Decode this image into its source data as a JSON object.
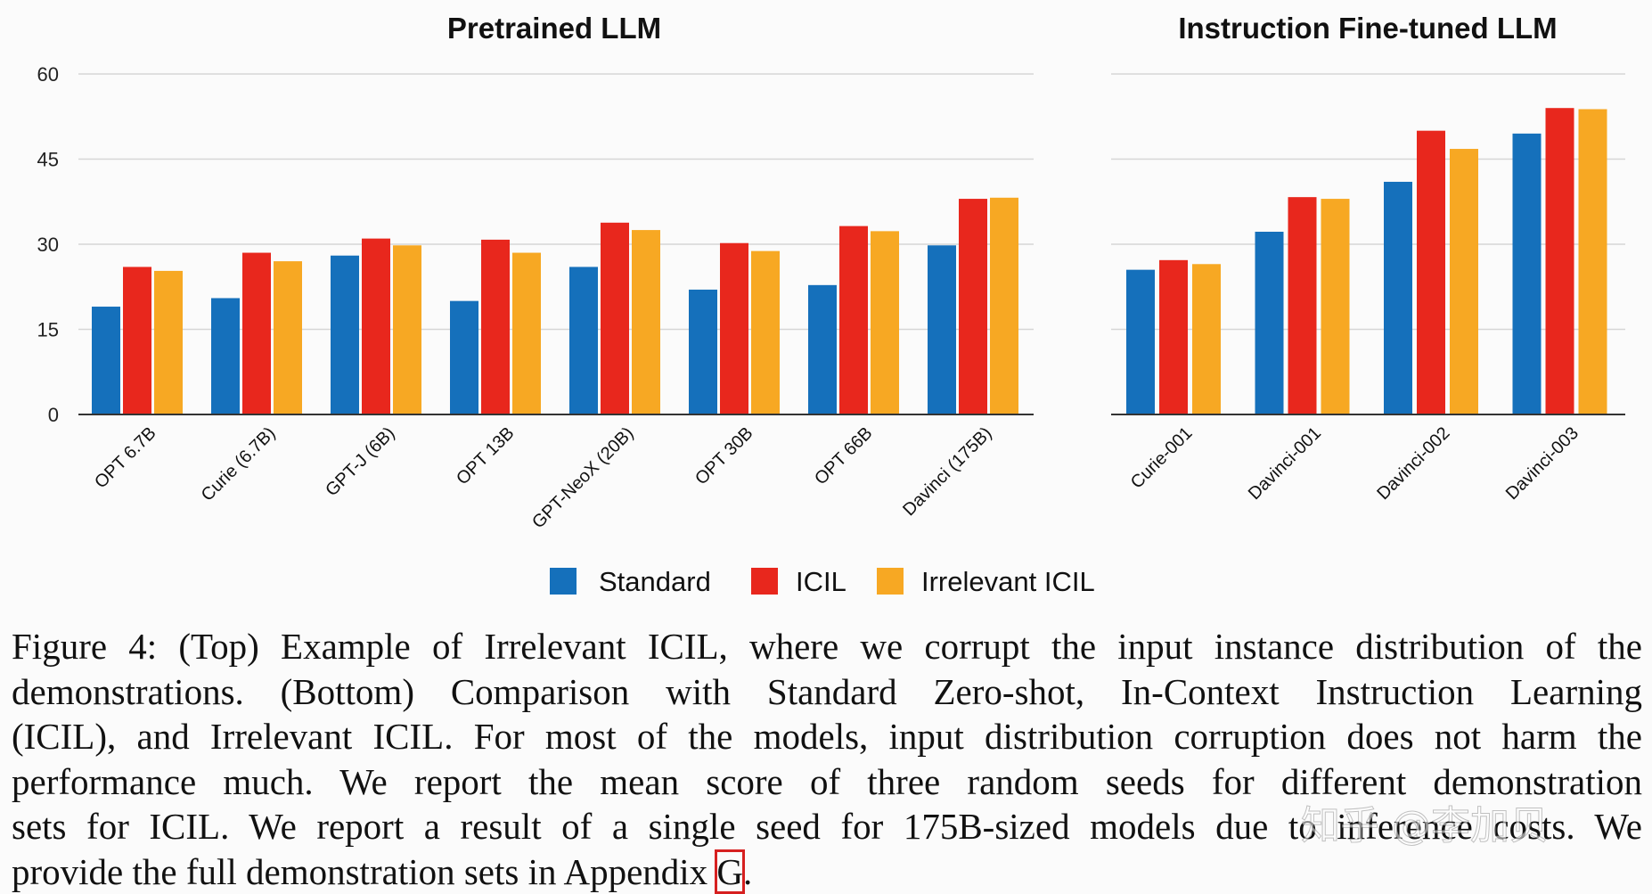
{
  "chart_data": [
    {
      "type": "bar",
      "title": "Pretrained LLM",
      "categories": [
        "OPT 6.7B",
        "Curie (6.7B)",
        "GPT-J (6B)",
        "OPT 13B",
        "GPT-NeoX (20B)",
        "OPT 30B",
        "OPT 66B",
        "Davinci (175B)"
      ],
      "series": [
        {
          "name": "Standard",
          "values": [
            19,
            20.5,
            28,
            20,
            26,
            22,
            22.8,
            29.8
          ]
        },
        {
          "name": "ICIL",
          "values": [
            26,
            28.5,
            31,
            30.8,
            33.8,
            30.2,
            33.2,
            38
          ]
        },
        {
          "name": "Irrelevant ICIL",
          "values": [
            25.3,
            27,
            29.8,
            28.5,
            32.5,
            28.8,
            32.3,
            38.2
          ]
        }
      ],
      "yticks": [
        "0",
        "15",
        "30",
        "45",
        "60"
      ],
      "ylim": [
        0,
        60
      ],
      "xlabel": "",
      "ylabel": ""
    },
    {
      "type": "bar",
      "title": "Instruction Fine-tuned LLM",
      "categories": [
        "Curie-001",
        "Davinci-001",
        "Davinci-002",
        "Davinci-003"
      ],
      "series": [
        {
          "name": "Standard",
          "values": [
            25.5,
            32.2,
            41,
            49.5
          ]
        },
        {
          "name": "ICIL",
          "values": [
            27.2,
            38.3,
            50,
            54
          ]
        },
        {
          "name": "Irrelevant ICIL",
          "values": [
            26.5,
            38,
            46.8,
            53.8
          ]
        }
      ],
      "ylim": [
        0,
        60
      ],
      "xlabel": "",
      "ylabel": ""
    }
  ],
  "legend": {
    "items": [
      {
        "label": "Standard",
        "color": "#1570bb"
      },
      {
        "label": "ICIL",
        "color": "#e8271d"
      },
      {
        "label": "Irrelevant ICIL",
        "color": "#f7a823"
      }
    ],
    "position": "bottom-center"
  },
  "caption": {
    "line1": "Figure 4: (Top) Example of Irrelevant ICIL, where we corrupt the input instance distribution of the",
    "line2": "demonstrations. (Bottom) Comparison with Standard Zero-shot, In-Context Instruction Learning",
    "line3": "(ICIL), and Irrelevant ICIL. For most of the models, input distribution corruption does not harm the",
    "line4": "performance much. We report the mean score of three random seeds for different demonstration",
    "line5": "sets for ICIL. We report a result of a single seed for 175B-sized models due to inference costs. We",
    "line6_pre": "provide the full demonstration sets in Appendix ",
    "line6_ref": "G",
    "line6_post": "."
  },
  "watermark": "知乎 @李加贝"
}
